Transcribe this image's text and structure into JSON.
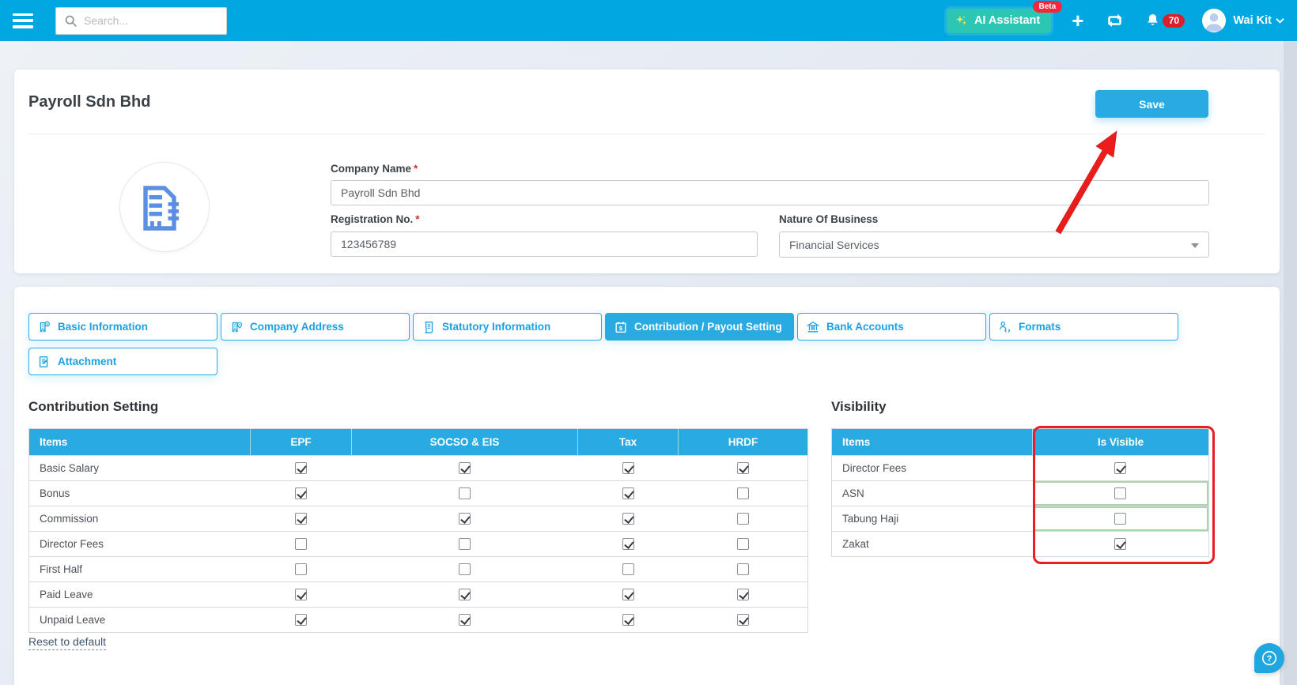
{
  "topbar": {
    "search": {
      "placeholder": "Search...",
      "icon": "search-icon"
    },
    "ai_assistant": {
      "label": "AI Assistant",
      "badge": "Beta",
      "icon": "sparkles-icon"
    },
    "actions": [
      {
        "icon": "plus-icon"
      },
      {
        "icon": "sync-icon"
      },
      {
        "icon": "bell-icon",
        "badge": "70"
      }
    ],
    "user": {
      "name": "Wai Kit",
      "icon": "avatar-icon",
      "chevron": "chevron-down-icon"
    },
    "menu_icon": "hamburger-icon"
  },
  "page": {
    "title": "Payroll Sdn Bhd",
    "save_label": "Save",
    "logo_icon": "company-building-icon"
  },
  "form": {
    "required_mark": "*",
    "company_name": {
      "label": "Company Name",
      "value": "Payroll Sdn Bhd"
    },
    "registration_no": {
      "label": "Registration No.",
      "value": "123456789"
    },
    "nature_of_business": {
      "label": "Nature Of Business",
      "value": "Financial Services"
    }
  },
  "tabs": [
    {
      "label": "Basic Information",
      "icon": "building-info-icon",
      "active": false
    },
    {
      "label": "Company Address",
      "icon": "building-pin-icon",
      "active": false
    },
    {
      "label": "Statutory Information",
      "icon": "scroll-icon",
      "active": false
    },
    {
      "label": "Contribution / Payout Setting",
      "icon": "calendar-dollar-icon",
      "active": true
    },
    {
      "label": "Bank Accounts",
      "icon": "bank-icon",
      "active": false
    },
    {
      "label": "Formats",
      "icon": "person-code-icon",
      "active": false
    },
    {
      "label": "Attachment",
      "icon": "doc-pencil-icon",
      "active": false
    }
  ],
  "contribution_setting": {
    "heading": "Contribution Setting",
    "columns": [
      "Items",
      "EPF",
      "SOCSO & EIS",
      "Tax",
      "HRDF"
    ],
    "rows": [
      {
        "item": "Basic Salary",
        "values": [
          true,
          true,
          true,
          true
        ]
      },
      {
        "item": "Bonus",
        "values": [
          true,
          false,
          true,
          false
        ]
      },
      {
        "item": "Commission",
        "values": [
          true,
          true,
          true,
          false
        ]
      },
      {
        "item": "Director Fees",
        "values": [
          false,
          false,
          true,
          false
        ]
      },
      {
        "item": "First Half",
        "values": [
          false,
          false,
          false,
          false
        ]
      },
      {
        "item": "Paid Leave",
        "values": [
          true,
          true,
          true,
          true
        ]
      },
      {
        "item": "Unpaid Leave",
        "values": [
          true,
          true,
          true,
          true
        ]
      }
    ],
    "reset_label": "Reset to default"
  },
  "visibility": {
    "heading": "Visibility",
    "columns": [
      "Items",
      "Is Visible"
    ],
    "rows": [
      {
        "item": "Director Fees",
        "checked": true,
        "highlighted": false
      },
      {
        "item": "ASN",
        "checked": false,
        "highlighted": true
      },
      {
        "item": "Tabung Haji",
        "checked": false,
        "highlighted": true
      },
      {
        "item": "Zakat",
        "checked": true,
        "highlighted": false
      }
    ]
  },
  "help": {
    "icon": "question-help-icon"
  },
  "colors": {
    "topbar": "#00a7e1",
    "accent": "#29abe2",
    "ai_teal": "#2bc7b4",
    "badge_red": "#d7222d",
    "annotation_red": "#ec1c24",
    "highlight_green": "#abd5ac"
  }
}
